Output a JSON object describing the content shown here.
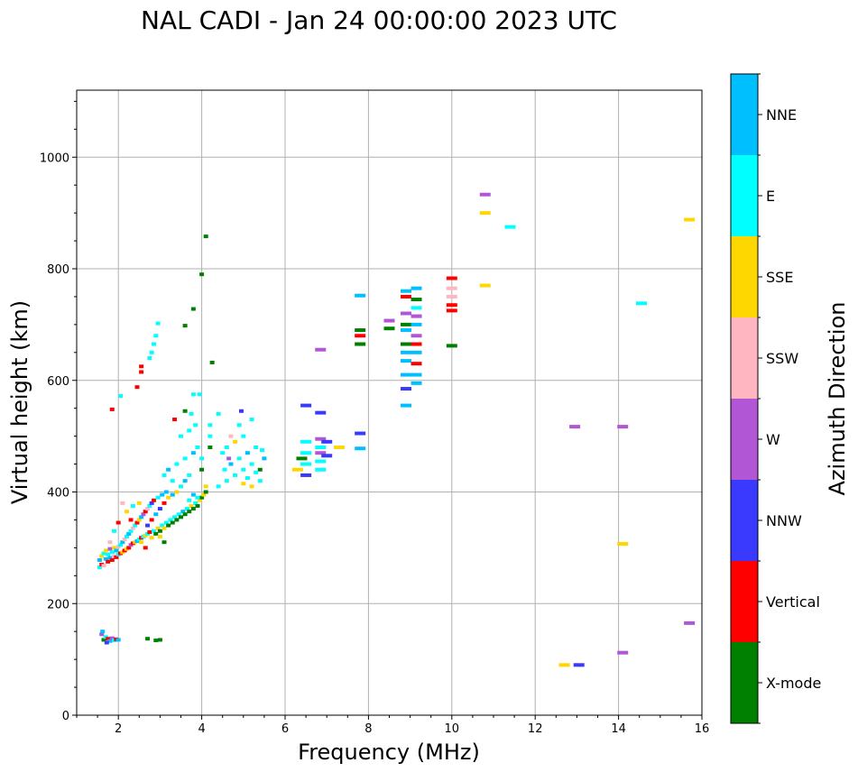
{
  "chart_data": {
    "type": "scatter",
    "title": "NAL CADI - Jan 24 00:00:00 2023 UTC",
    "xlabel": "Frequency (MHz)",
    "ylabel": "Virtual height (km)",
    "xlim": [
      1.0,
      16.0
    ],
    "ylim": [
      0,
      1120
    ],
    "xticks": [
      2,
      4,
      6,
      8,
      10,
      12,
      14,
      16
    ],
    "yticks": [
      0,
      200,
      400,
      600,
      800,
      1000
    ],
    "grid": true,
    "colorbar": {
      "label": "Azimuth Direction",
      "entries": [
        {
          "label": "X-mode",
          "color": "#008000"
        },
        {
          "label": "Vertical",
          "color": "#ff0000"
        },
        {
          "label": "NNW",
          "color": "#3a3aff"
        },
        {
          "label": "W",
          "color": "#b157d6"
        },
        {
          "label": "SSW",
          "color": "#ffb6c1"
        },
        {
          "label": "SSE",
          "color": "#ffd700"
        },
        {
          "label": "E",
          "color": "#00ffff"
        },
        {
          "label": "NNE",
          "color": "#00bfff"
        }
      ]
    },
    "segments": [
      {
        "f": 1.65,
        "h": 135,
        "d": 0
      },
      {
        "f": 1.7,
        "h": 140,
        "d": 6
      },
      {
        "f": 1.75,
        "h": 137,
        "d": 1
      },
      {
        "f": 1.8,
        "h": 133,
        "d": 7
      },
      {
        "f": 1.85,
        "h": 138,
        "d": 3
      },
      {
        "f": 1.9,
        "h": 134,
        "d": 6
      },
      {
        "f": 1.95,
        "h": 136,
        "d": 1
      },
      {
        "f": 2.0,
        "h": 135,
        "d": 7
      },
      {
        "f": 1.6,
        "h": 145,
        "d": 3
      },
      {
        "f": 1.62,
        "h": 150,
        "d": 7
      },
      {
        "f": 1.72,
        "h": 130,
        "d": 2
      },
      {
        "f": 2.7,
        "h": 137,
        "d": 0
      },
      {
        "f": 2.9,
        "h": 134,
        "d": 0
      },
      {
        "f": 3.0,
        "h": 135,
        "d": 0
      },
      {
        "f": 1.55,
        "h": 265,
        "d": 6
      },
      {
        "f": 1.55,
        "h": 278,
        "d": 7
      },
      {
        "f": 1.6,
        "h": 285,
        "d": 5
      },
      {
        "f": 1.6,
        "h": 270,
        "d": 1
      },
      {
        "f": 1.65,
        "h": 290,
        "d": 6
      },
      {
        "f": 1.65,
        "h": 268,
        "d": 4
      },
      {
        "f": 1.7,
        "h": 280,
        "d": 7
      },
      {
        "f": 1.7,
        "h": 295,
        "d": 5
      },
      {
        "f": 1.75,
        "h": 275,
        "d": 1
      },
      {
        "f": 1.75,
        "h": 288,
        "d": 6
      },
      {
        "f": 1.8,
        "h": 282,
        "d": 7
      },
      {
        "f": 1.8,
        "h": 298,
        "d": 3
      },
      {
        "f": 1.85,
        "h": 278,
        "d": 1
      },
      {
        "f": 1.85,
        "h": 292,
        "d": 6
      },
      {
        "f": 1.9,
        "h": 285,
        "d": 4
      },
      {
        "f": 1.9,
        "h": 300,
        "d": 5
      },
      {
        "f": 1.95,
        "h": 283,
        "d": 1
      },
      {
        "f": 1.95,
        "h": 295,
        "d": 7
      },
      {
        "f": 2.0,
        "h": 288,
        "d": 6
      },
      {
        "f": 2.0,
        "h": 302,
        "d": 4
      },
      {
        "f": 2.05,
        "h": 290,
        "d": 1
      },
      {
        "f": 2.05,
        "h": 305,
        "d": 6
      },
      {
        "f": 2.1,
        "h": 292,
        "d": 5
      },
      {
        "f": 2.1,
        "h": 310,
        "d": 7
      },
      {
        "f": 2.15,
        "h": 295,
        "d": 1
      },
      {
        "f": 2.15,
        "h": 315,
        "d": 4
      },
      {
        "f": 2.2,
        "h": 298,
        "d": 5
      },
      {
        "f": 2.2,
        "h": 320,
        "d": 6
      },
      {
        "f": 2.25,
        "h": 300,
        "d": 1
      },
      {
        "f": 2.25,
        "h": 325,
        "d": 7
      },
      {
        "f": 2.3,
        "h": 305,
        "d": 3
      },
      {
        "f": 2.3,
        "h": 330,
        "d": 6
      },
      {
        "f": 2.35,
        "h": 308,
        "d": 1
      },
      {
        "f": 2.35,
        "h": 335,
        "d": 4
      },
      {
        "f": 2.4,
        "h": 310,
        "d": 5
      },
      {
        "f": 2.4,
        "h": 340,
        "d": 6
      },
      {
        "f": 2.45,
        "h": 312,
        "d": 7
      },
      {
        "f": 2.45,
        "h": 345,
        "d": 1
      },
      {
        "f": 2.5,
        "h": 315,
        "d": 6
      },
      {
        "f": 2.5,
        "h": 350,
        "d": 5
      },
      {
        "f": 2.55,
        "h": 318,
        "d": 1
      },
      {
        "f": 2.55,
        "h": 355,
        "d": 7
      },
      {
        "f": 2.6,
        "h": 320,
        "d": 6
      },
      {
        "f": 2.6,
        "h": 360,
        "d": 3
      },
      {
        "f": 2.65,
        "h": 322,
        "d": 5
      },
      {
        "f": 2.65,
        "h": 365,
        "d": 1
      },
      {
        "f": 2.7,
        "h": 325,
        "d": 6
      },
      {
        "f": 2.7,
        "h": 370,
        "d": 4
      },
      {
        "f": 2.75,
        "h": 328,
        "d": 1
      },
      {
        "f": 2.75,
        "h": 375,
        "d": 6
      },
      {
        "f": 2.8,
        "h": 318,
        "d": 5
      },
      {
        "f": 2.8,
        "h": 380,
        "d": 2
      },
      {
        "f": 2.85,
        "h": 330,
        "d": 6
      },
      {
        "f": 2.85,
        "h": 385,
        "d": 1
      },
      {
        "f": 2.9,
        "h": 325,
        "d": 0
      },
      {
        "f": 2.9,
        "h": 360,
        "d": 7
      },
      {
        "f": 2.95,
        "h": 335,
        "d": 5
      },
      {
        "f": 2.95,
        "h": 390,
        "d": 6
      },
      {
        "f": 3.0,
        "h": 330,
        "d": 0
      },
      {
        "f": 3.0,
        "h": 370,
        "d": 2
      },
      {
        "f": 3.05,
        "h": 340,
        "d": 6
      },
      {
        "f": 3.05,
        "h": 395,
        "d": 7
      },
      {
        "f": 3.1,
        "h": 335,
        "d": 5
      },
      {
        "f": 3.1,
        "h": 380,
        "d": 1
      },
      {
        "f": 3.15,
        "h": 345,
        "d": 6
      },
      {
        "f": 3.15,
        "h": 400,
        "d": 7
      },
      {
        "f": 3.2,
        "h": 340,
        "d": 0
      },
      {
        "f": 3.2,
        "h": 390,
        "d": 5
      },
      {
        "f": 3.25,
        "h": 350,
        "d": 6
      },
      {
        "f": 3.3,
        "h": 345,
        "d": 0
      },
      {
        "f": 3.3,
        "h": 395,
        "d": 7
      },
      {
        "f": 3.35,
        "h": 355,
        "d": 6
      },
      {
        "f": 3.4,
        "h": 350,
        "d": 0
      },
      {
        "f": 3.4,
        "h": 400,
        "d": 5
      },
      {
        "f": 3.45,
        "h": 360,
        "d": 6
      },
      {
        "f": 3.5,
        "h": 355,
        "d": 0
      },
      {
        "f": 3.55,
        "h": 365,
        "d": 7
      },
      {
        "f": 3.6,
        "h": 360,
        "d": 0
      },
      {
        "f": 3.65,
        "h": 370,
        "d": 6
      },
      {
        "f": 3.7,
        "h": 365,
        "d": 0
      },
      {
        "f": 3.75,
        "h": 375,
        "d": 5
      },
      {
        "f": 3.8,
        "h": 370,
        "d": 0
      },
      {
        "f": 3.85,
        "h": 380,
        "d": 6
      },
      {
        "f": 3.9,
        "h": 375,
        "d": 0
      },
      {
        "f": 3.95,
        "h": 385,
        "d": 5
      },
      {
        "f": 4.0,
        "h": 390,
        "d": 0
      },
      {
        "f": 4.05,
        "h": 395,
        "d": 5
      },
      {
        "f": 4.1,
        "h": 400,
        "d": 0
      },
      {
        "f": 4.1,
        "h": 410,
        "d": 5
      },
      {
        "f": 3.7,
        "h": 385,
        "d": 6
      },
      {
        "f": 3.8,
        "h": 395,
        "d": 7
      },
      {
        "f": 3.9,
        "h": 390,
        "d": 6
      },
      {
        "f": 3.5,
        "h": 410,
        "d": 6
      },
      {
        "f": 3.6,
        "h": 420,
        "d": 7
      },
      {
        "f": 3.7,
        "h": 430,
        "d": 6
      },
      {
        "f": 3.3,
        "h": 420,
        "d": 6
      },
      {
        "f": 3.1,
        "h": 430,
        "d": 6
      },
      {
        "f": 3.2,
        "h": 440,
        "d": 7
      },
      {
        "f": 3.4,
        "h": 450,
        "d": 6
      },
      {
        "f": 3.6,
        "h": 460,
        "d": 6
      },
      {
        "f": 3.8,
        "h": 470,
        "d": 7
      },
      {
        "f": 3.9,
        "h": 480,
        "d": 6
      },
      {
        "f": 4.0,
        "h": 440,
        "d": 0
      },
      {
        "f": 4.0,
        "h": 460,
        "d": 6
      },
      {
        "f": 3.5,
        "h": 500,
        "d": 6
      },
      {
        "f": 3.7,
        "h": 510,
        "d": 6
      },
      {
        "f": 3.85,
        "h": 520,
        "d": 6
      },
      {
        "f": 4.2,
        "h": 480,
        "d": 0
      },
      {
        "f": 4.2,
        "h": 500,
        "d": 6
      },
      {
        "f": 4.2,
        "h": 520,
        "d": 6
      },
      {
        "f": 4.4,
        "h": 540,
        "d": 6
      },
      {
        "f": 3.35,
        "h": 530,
        "d": 1
      },
      {
        "f": 3.8,
        "h": 575,
        "d": 6
      },
      {
        "f": 3.95,
        "h": 575,
        "d": 6
      },
      {
        "f": 3.75,
        "h": 540,
        "d": 6
      },
      {
        "f": 3.6,
        "h": 545,
        "d": 0
      },
      {
        "f": 2.3,
        "h": 350,
        "d": 1
      },
      {
        "f": 2.2,
        "h": 365,
        "d": 5
      },
      {
        "f": 2.1,
        "h": 380,
        "d": 4
      },
      {
        "f": 2.35,
        "h": 375,
        "d": 6
      },
      {
        "f": 2.5,
        "h": 380,
        "d": 5
      },
      {
        "f": 2.0,
        "h": 345,
        "d": 1
      },
      {
        "f": 1.9,
        "h": 330,
        "d": 6
      },
      {
        "f": 1.8,
        "h": 310,
        "d": 4
      },
      {
        "f": 2.8,
        "h": 350,
        "d": 1
      },
      {
        "f": 2.7,
        "h": 340,
        "d": 2
      },
      {
        "f": 3.0,
        "h": 320,
        "d": 5
      },
      {
        "f": 3.1,
        "h": 310,
        "d": 0
      },
      {
        "f": 2.65,
        "h": 300,
        "d": 1
      },
      {
        "f": 2.55,
        "h": 310,
        "d": 5
      },
      {
        "f": 4.4,
        "h": 410,
        "d": 6
      },
      {
        "f": 4.6,
        "h": 420,
        "d": 6
      },
      {
        "f": 4.8,
        "h": 430,
        "d": 6
      },
      {
        "f": 5.0,
        "h": 440,
        "d": 6
      },
      {
        "f": 5.2,
        "h": 450,
        "d": 6
      },
      {
        "f": 5.4,
        "h": 420,
        "d": 6
      },
      {
        "f": 4.7,
        "h": 450,
        "d": 7
      },
      {
        "f": 4.9,
        "h": 460,
        "d": 6
      },
      {
        "f": 5.1,
        "h": 470,
        "d": 7
      },
      {
        "f": 5.3,
        "h": 480,
        "d": 6
      },
      {
        "f": 5.5,
        "h": 460,
        "d": 7
      },
      {
        "f": 4.6,
        "h": 480,
        "d": 6
      },
      {
        "f": 4.8,
        "h": 490,
        "d": 5
      },
      {
        "f": 5.0,
        "h": 500,
        "d": 6
      },
      {
        "f": 5.2,
        "h": 410,
        "d": 5
      },
      {
        "f": 5.4,
        "h": 440,
        "d": 0
      },
      {
        "f": 5.0,
        "h": 415,
        "d": 5
      },
      {
        "f": 4.5,
        "h": 470,
        "d": 6
      },
      {
        "f": 4.7,
        "h": 500,
        "d": 4
      },
      {
        "f": 4.9,
        "h": 520,
        "d": 6
      },
      {
        "f": 5.1,
        "h": 425,
        "d": 6
      },
      {
        "f": 5.3,
        "h": 435,
        "d": 6
      },
      {
        "f": 4.55,
        "h": 440,
        "d": 6
      },
      {
        "f": 4.95,
        "h": 545,
        "d": 2
      },
      {
        "f": 5.2,
        "h": 530,
        "d": 6
      },
      {
        "f": 5.45,
        "h": 475,
        "d": 6
      },
      {
        "f": 4.65,
        "h": 460,
        "d": 3
      },
      {
        "f": 6.5,
        "h": 430,
        "d": 2
      },
      {
        "f": 6.5,
        "h": 450,
        "d": 6
      },
      {
        "f": 6.5,
        "h": 470,
        "d": 6
      },
      {
        "f": 6.5,
        "h": 490,
        "d": 6
      },
      {
        "f": 6.5,
        "h": 555,
        "d": 2
      },
      {
        "f": 6.4,
        "h": 460,
        "d": 0
      },
      {
        "f": 6.3,
        "h": 440,
        "d": 5
      },
      {
        "f": 6.85,
        "h": 440,
        "d": 6
      },
      {
        "f": 6.85,
        "h": 455,
        "d": 6
      },
      {
        "f": 6.85,
        "h": 470,
        "d": 3
      },
      {
        "f": 6.85,
        "h": 480,
        "d": 6
      },
      {
        "f": 6.85,
        "h": 495,
        "d": 3
      },
      {
        "f": 6.85,
        "h": 542,
        "d": 2
      },
      {
        "f": 7.0,
        "h": 465,
        "d": 2
      },
      {
        "f": 7.0,
        "h": 490,
        "d": 2
      },
      {
        "f": 7.3,
        "h": 480,
        "d": 5
      },
      {
        "f": 6.85,
        "h": 655,
        "d": 3
      },
      {
        "f": 7.8,
        "h": 478,
        "d": 7
      },
      {
        "f": 7.8,
        "h": 505,
        "d": 2
      },
      {
        "f": 7.8,
        "h": 665,
        "d": 0
      },
      {
        "f": 7.8,
        "h": 680,
        "d": 1
      },
      {
        "f": 7.8,
        "h": 690,
        "d": 0
      },
      {
        "f": 7.8,
        "h": 752,
        "d": 7
      },
      {
        "f": 8.5,
        "h": 693,
        "d": 0
      },
      {
        "f": 8.5,
        "h": 707,
        "d": 3
      },
      {
        "f": 8.9,
        "h": 555,
        "d": 7
      },
      {
        "f": 8.9,
        "h": 585,
        "d": 2
      },
      {
        "f": 8.9,
        "h": 610,
        "d": 7
      },
      {
        "f": 8.9,
        "h": 635,
        "d": 7
      },
      {
        "f": 8.9,
        "h": 650,
        "d": 7
      },
      {
        "f": 8.9,
        "h": 665,
        "d": 0
      },
      {
        "f": 8.9,
        "h": 690,
        "d": 7
      },
      {
        "f": 8.9,
        "h": 700,
        "d": 0
      },
      {
        "f": 8.9,
        "h": 720,
        "d": 3
      },
      {
        "f": 8.9,
        "h": 750,
        "d": 1
      },
      {
        "f": 8.9,
        "h": 760,
        "d": 7
      },
      {
        "f": 9.15,
        "h": 595,
        "d": 7
      },
      {
        "f": 9.15,
        "h": 610,
        "d": 7
      },
      {
        "f": 9.15,
        "h": 630,
        "d": 1
      },
      {
        "f": 9.15,
        "h": 650,
        "d": 7
      },
      {
        "f": 9.15,
        "h": 665,
        "d": 1
      },
      {
        "f": 9.15,
        "h": 680,
        "d": 3
      },
      {
        "f": 9.15,
        "h": 700,
        "d": 7
      },
      {
        "f": 9.15,
        "h": 715,
        "d": 3
      },
      {
        "f": 9.15,
        "h": 730,
        "d": 6
      },
      {
        "f": 9.15,
        "h": 745,
        "d": 0
      },
      {
        "f": 9.15,
        "h": 765,
        "d": 7
      },
      {
        "f": 10.0,
        "h": 662,
        "d": 0
      },
      {
        "f": 10.0,
        "h": 725,
        "d": 1
      },
      {
        "f": 10.0,
        "h": 735,
        "d": 1
      },
      {
        "f": 10.0,
        "h": 750,
        "d": 4
      },
      {
        "f": 10.0,
        "h": 765,
        "d": 4
      },
      {
        "f": 10.0,
        "h": 783,
        "d": 1
      },
      {
        "f": 10.8,
        "h": 770,
        "d": 5
      },
      {
        "f": 10.8,
        "h": 900,
        "d": 5
      },
      {
        "f": 10.8,
        "h": 933,
        "d": 3
      },
      {
        "f": 11.4,
        "h": 875,
        "d": 6
      },
      {
        "f": 12.7,
        "h": 90,
        "d": 5
      },
      {
        "f": 13.05,
        "h": 90,
        "d": 2
      },
      {
        "f": 12.95,
        "h": 517,
        "d": 3
      },
      {
        "f": 14.1,
        "h": 112,
        "d": 3
      },
      {
        "f": 14.1,
        "h": 307,
        "d": 5
      },
      {
        "f": 14.1,
        "h": 517,
        "d": 3
      },
      {
        "f": 14.55,
        "h": 738,
        "d": 6
      },
      {
        "f": 15.7,
        "h": 165,
        "d": 3
      },
      {
        "f": 15.7,
        "h": 888,
        "d": 5
      },
      {
        "f": 1.85,
        "h": 548,
        "d": 1
      },
      {
        "f": 2.05,
        "h": 572,
        "d": 6
      },
      {
        "f": 2.45,
        "h": 588,
        "d": 1
      },
      {
        "f": 2.55,
        "h": 615,
        "d": 1
      },
      {
        "f": 2.55,
        "h": 625,
        "d": 1
      },
      {
        "f": 2.75,
        "h": 640,
        "d": 6
      },
      {
        "f": 2.8,
        "h": 650,
        "d": 6
      },
      {
        "f": 2.85,
        "h": 665,
        "d": 6
      },
      {
        "f": 2.9,
        "h": 680,
        "d": 6
      },
      {
        "f": 2.95,
        "h": 702,
        "d": 6
      },
      {
        "f": 3.6,
        "h": 698,
        "d": 0
      },
      {
        "f": 3.8,
        "h": 728,
        "d": 0
      },
      {
        "f": 4.0,
        "h": 790,
        "d": 0
      },
      {
        "f": 4.1,
        "h": 858,
        "d": 0
      },
      {
        "f": 4.25,
        "h": 632,
        "d": 0
      }
    ]
  }
}
